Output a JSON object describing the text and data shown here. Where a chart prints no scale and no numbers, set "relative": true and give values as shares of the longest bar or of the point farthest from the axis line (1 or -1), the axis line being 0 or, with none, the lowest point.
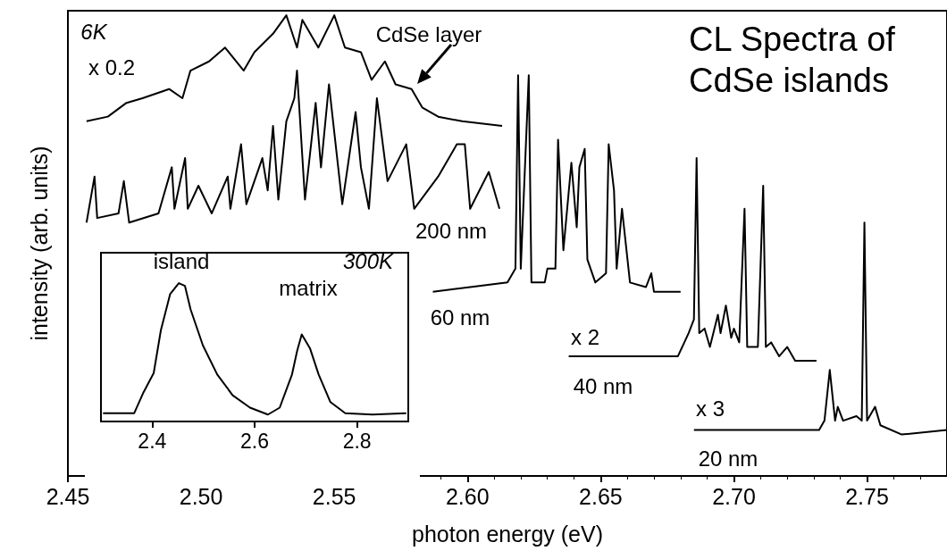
{
  "chart_data": [
    {
      "type": "line",
      "title": "CL Spectra of CdSe islands",
      "xlabel": "photon energy (eV)",
      "ylabel": "intensity (arb. units)",
      "xlim": [
        2.45,
        2.78
      ],
      "xticks": [
        {
          "value": 2.45,
          "label": "2.45"
        },
        {
          "value": 2.5,
          "label": "2.50"
        },
        {
          "value": 2.55,
          "label": "2.55"
        },
        {
          "value": 2.6,
          "label": "2.60"
        },
        {
          "value": 2.65,
          "label": "2.65"
        },
        {
          "value": 2.7,
          "label": "2.70"
        },
        {
          "value": 2.75,
          "label": "2.75"
        }
      ],
      "relative": true,
      "marker": "none",
      "line_style": "solid",
      "series": [
        {
          "name": "CdSe layer",
          "color": "#000000",
          "x": [
            2.457,
            2.465,
            2.472,
            2.478,
            2.488,
            2.493,
            2.496,
            2.503,
            2.509,
            2.516,
            2.52,
            2.527,
            2.532,
            2.536,
            2.538,
            2.544,
            2.55,
            2.554,
            2.56,
            2.564,
            2.569,
            2.573,
            2.579,
            2.583,
            2.589,
            2.598,
            2.613
          ],
          "values": [
            0.77,
            0.78,
            0.81,
            0.82,
            0.84,
            0.82,
            0.88,
            0.9,
            0.93,
            0.88,
            0.92,
            0.96,
            1,
            0.93,
            0.99,
            0.93,
            1,
            0.93,
            0.92,
            0.86,
            0.9,
            0.85,
            0.84,
            0.8,
            0.78,
            0.77,
            0.76
          ]
        },
        {
          "name": "200 nm",
          "color": "#000000",
          "x": [
            2.457,
            2.46,
            2.461,
            2.469,
            2.471,
            2.473,
            2.484,
            2.489,
            2.49,
            2.494,
            2.495,
            2.499,
            2.504,
            2.51,
            2.511,
            2.515,
            2.517,
            2.523,
            2.525,
            2.527,
            2.529,
            2.532,
            2.535,
            2.536,
            2.539,
            2.543,
            2.545,
            2.548,
            2.553,
            2.558,
            2.56,
            2.563,
            2.566,
            2.57,
            2.577,
            2.58,
            2.589,
            2.596,
            2.599,
            2.601,
            2.608,
            2.612
          ],
          "values": [
            0.55,
            0.65,
            0.56,
            0.57,
            0.64,
            0.55,
            0.57,
            0.67,
            0.58,
            0.69,
            0.58,
            0.63,
            0.57,
            0.65,
            0.58,
            0.72,
            0.59,
            0.69,
            0.62,
            0.76,
            0.6,
            0.77,
            0.82,
            0.88,
            0.6,
            0.81,
            0.67,
            0.85,
            0.59,
            0.79,
            0.67,
            0.58,
            0.82,
            0.64,
            0.72,
            0.58,
            0.65,
            0.72,
            0.72,
            0.58,
            0.66,
            0.58
          ]
        },
        {
          "name": "60 nm",
          "color": "#000000",
          "x": [
            2.587,
            2.601,
            2.615,
            2.618,
            2.619,
            2.62,
            2.623,
            2.624,
            2.629,
            2.63,
            2.633,
            2.634,
            2.636,
            2.639,
            2.641,
            2.642,
            2.644,
            2.645,
            2.648,
            2.652,
            2.653,
            2.655,
            2.656,
            2.658,
            2.661,
            2.667,
            2.669,
            2.67,
            2.68
          ],
          "values": [
            0.4,
            0.41,
            0.42,
            0.45,
            0.87,
            0.45,
            0.87,
            0.42,
            0.42,
            0.45,
            0.45,
            0.73,
            0.49,
            0.68,
            0.54,
            0.67,
            0.71,
            0.47,
            0.42,
            0.44,
            0.72,
            0.62,
            0.45,
            0.58,
            0.42,
            0.41,
            0.44,
            0.4,
            0.4
          ]
        },
        {
          "name": "40 nm",
          "color": "#000000",
          "x": [
            2.638,
            2.679,
            2.683,
            2.685,
            2.686,
            2.687,
            2.689,
            2.691,
            2.694,
            2.695,
            2.697,
            2.699,
            2.7,
            2.702,
            2.704,
            2.705,
            2.709,
            2.711,
            2.712,
            2.714,
            2.717,
            2.72,
            2.723,
            2.731
          ],
          "values": [
            0.26,
            0.26,
            0.31,
            0.34,
            0.69,
            0.31,
            0.32,
            0.28,
            0.35,
            0.31,
            0.37,
            0.3,
            0.32,
            0.29,
            0.58,
            0.28,
            0.28,
            0.63,
            0.28,
            0.29,
            0.26,
            0.28,
            0.25,
            0.25
          ]
        },
        {
          "name": "20 nm",
          "color": "#000000",
          "x": [
            2.685,
            2.732,
            2.734,
            2.736,
            2.738,
            2.739,
            2.741,
            2.746,
            2.748,
            2.749,
            2.75,
            2.753,
            2.755,
            2.763,
            2.78
          ],
          "values": [
            0.1,
            0.1,
            0.12,
            0.23,
            0.12,
            0.15,
            0.12,
            0.13,
            0.12,
            0.55,
            0.12,
            0.15,
            0.11,
            0.09,
            0.1
          ]
        }
      ],
      "annotations": [
        "6K",
        "x 0.2",
        "x 2",
        "x 3"
      ]
    },
    {
      "type": "line",
      "xlim": [
        2.3,
        2.9
      ],
      "xticks": [
        2.4,
        2.6,
        2.8
      ],
      "relative": true,
      "marker": "none",
      "line_style": "solid",
      "series": [
        {
          "color": "#000000",
          "x": [
            2.304,
            2.365,
            2.383,
            2.403,
            2.417,
            2.435,
            2.452,
            2.464,
            2.475,
            2.499,
            2.527,
            2.557,
            2.591,
            2.626,
            2.649,
            2.673,
            2.683,
            2.692,
            2.708,
            2.725,
            2.748,
            2.777,
            2.83,
            2.896
          ],
          "values": [
            0.06,
            0.06,
            0.21,
            0.35,
            0.66,
            0.92,
            1,
            0.98,
            0.81,
            0.55,
            0.34,
            0.19,
            0.1,
            0.05,
            0.1,
            0.34,
            0.51,
            0.63,
            0.53,
            0.34,
            0.14,
            0.06,
            0.05,
            0.06
          ]
        }
      ],
      "annotations": [
        "island",
        "matrix",
        "300K"
      ]
    }
  ]
}
